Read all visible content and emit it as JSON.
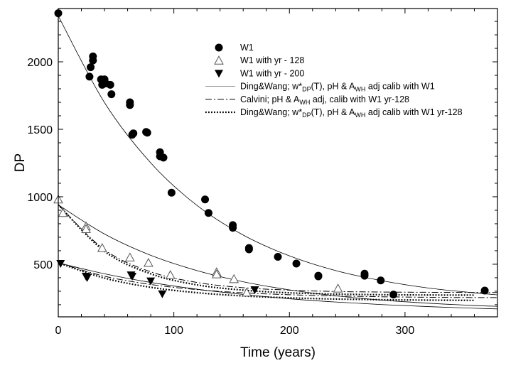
{
  "chart_data": {
    "type": "scatter",
    "title": "",
    "xlabel": "Time (years)",
    "ylabel": "DP",
    "xlim": [
      0,
      380
    ],
    "ylim": [
      110,
      2395
    ],
    "x_ticks": [
      0,
      100,
      200,
      300
    ],
    "y_ticks": [
      500,
      1000,
      1500,
      2000
    ],
    "x_minor_step": 20,
    "y_minor_step": 100,
    "grid": false,
    "legend_placement": "top-center",
    "series": [
      {
        "name": "W1",
        "kind": "points",
        "marker": "filled-circle",
        "points": [
          [
            0,
            2360
          ],
          [
            27,
            1890
          ],
          [
            28,
            1960
          ],
          [
            30,
            2040
          ],
          [
            30,
            2010
          ],
          [
            37,
            1870
          ],
          [
            38,
            1830
          ],
          [
            40,
            1870
          ],
          [
            41,
            1840
          ],
          [
            45,
            1830
          ],
          [
            46,
            1760
          ],
          [
            62,
            1700
          ],
          [
            62,
            1680
          ],
          [
            64,
            1460
          ],
          [
            65,
            1470
          ],
          [
            76,
            1480
          ],
          [
            77,
            1475
          ],
          [
            88,
            1330
          ],
          [
            88,
            1300
          ],
          [
            91,
            1290
          ],
          [
            98,
            1030
          ],
          [
            127,
            980
          ],
          [
            130,
            880
          ],
          [
            151,
            790
          ],
          [
            151,
            770
          ],
          [
            165,
            620
          ],
          [
            165,
            610
          ],
          [
            190,
            555
          ],
          [
            206,
            505
          ],
          [
            225,
            415
          ],
          [
            225,
            410
          ],
          [
            265,
            430
          ],
          [
            265,
            415
          ],
          [
            279,
            380
          ],
          [
            290,
            275
          ],
          [
            369,
            305
          ]
        ]
      },
      {
        "name": "W1 with yr - 128",
        "kind": "points",
        "marker": "open-triangle-up",
        "points": [
          [
            0,
            980
          ],
          [
            4,
            880
          ],
          [
            24,
            780
          ],
          [
            24,
            760
          ],
          [
            38,
            620
          ],
          [
            62,
            550
          ],
          [
            78,
            510
          ],
          [
            97,
            420
          ],
          [
            137,
            441
          ],
          [
            137,
            425
          ],
          [
            152,
            390
          ],
          [
            163,
            290
          ],
          [
            242,
            320
          ]
        ]
      },
      {
        "name": "W1 with yr - 200",
        "kind": "points",
        "marker": "filled-triangle-down",
        "points": [
          [
            2,
            505
          ],
          [
            24,
            410
          ],
          [
            25,
            400
          ],
          [
            63,
            420
          ],
          [
            64,
            410
          ],
          [
            80,
            375
          ],
          [
            90,
            280
          ],
          [
            170,
            310
          ]
        ]
      },
      {
        "name": "Ding&Wang; w*DP(T), pH & AWH adj calib with W1",
        "kind": "line",
        "style": "solid",
        "curves": [
          {
            "x": [
              0,
              40,
              80,
              120,
              160,
              200,
              240,
              280,
              320,
              360,
              380
            ],
            "y": [
              2340,
              1698,
              1251,
              936,
              716,
              562,
              453,
              378,
              324,
              288,
              273
            ]
          },
          {
            "x": [
              0,
              40,
              80,
              120,
              160,
              200,
              240,
              280,
              320,
              360,
              380
            ],
            "y": [
              940,
              724,
              566,
              453,
              370,
              310,
              266,
              234,
              211,
              194,
              188
            ]
          },
          {
            "x": [
              0,
              40,
              80,
              120,
              160,
              200,
              240,
              280,
              320,
              360,
              380
            ],
            "y": [
              510,
              429,
              365,
              315,
              276,
              244,
              220,
              201,
              186,
              174,
              169
            ]
          }
        ]
      },
      {
        "name": "Calvini; pH & AWH adj, calib with W1 yr-128",
        "kind": "line",
        "style": "dash-dot",
        "curves": [
          {
            "x": [
              0,
              40,
              80,
              120,
              160,
              200,
              240,
              280,
              320,
              360,
              380
            ],
            "y": [
              940,
              607,
              444,
              365,
              326,
              308,
              298,
              294,
              292,
              291,
              290
            ]
          },
          {
            "x": [
              0,
              40,
              80,
              120,
              160,
              200,
              240,
              280,
              320,
              360,
              380
            ],
            "y": [
              510,
              411,
              350,
              312,
              288,
              274,
              265,
              259,
              255,
              253,
              253
            ]
          }
        ]
      },
      {
        "name": "Ding&Wang; w*DP(T), pH & AWH adj calib with W1 yr-128",
        "kind": "line",
        "style": "dotted",
        "curves": [
          {
            "x": [
              0,
              40,
              80,
              120,
              160,
              200,
              240,
              280,
              320,
              360
            ],
            "y": [
              940,
              596,
              429,
              347,
              308,
              288,
              279,
              274,
              272,
              271
            ]
          },
          {
            "x": [
              0,
              40,
              80,
              120,
              160,
              200,
              240,
              280,
              320,
              360
            ],
            "y": [
              510,
              397,
              329,
              289,
              265,
              251,
              242,
              237,
              234,
              232
            ]
          }
        ]
      }
    ],
    "legend": [
      {
        "marker": "filled-circle",
        "parts": [
          {
            "t": "W1"
          }
        ]
      },
      {
        "marker": "open-triangle-up",
        "parts": [
          {
            "t": "W1 with yr - 128"
          }
        ]
      },
      {
        "marker": "filled-triangle-down",
        "parts": [
          {
            "t": "W1 with yr - 200"
          }
        ]
      },
      {
        "marker": "solid",
        "parts": [
          {
            "t": "Ding&Wang; w*"
          },
          {
            "t": "DP",
            "sub": true
          },
          {
            "t": "(T), pH & A"
          },
          {
            "t": "WH",
            "sub": true
          },
          {
            "t": " adj calib with W1"
          }
        ]
      },
      {
        "marker": "dash-dot",
        "parts": [
          {
            "t": "Calvini; pH & A"
          },
          {
            "t": "WH",
            "sub": true
          },
          {
            "t": " adj, calib with W1 yr-128"
          }
        ]
      },
      {
        "marker": "dotted",
        "parts": [
          {
            "t": "Ding&Wang; w*"
          },
          {
            "t": "DP",
            "sub": true
          },
          {
            "t": "(T), pH & A"
          },
          {
            "t": "WH",
            "sub": true
          },
          {
            "t": " adj calib with W1 yr-128"
          }
        ]
      }
    ],
    "colors": {
      "ink": "#000000",
      "open_marker": "#555555",
      "background": "#ffffff"
    }
  }
}
